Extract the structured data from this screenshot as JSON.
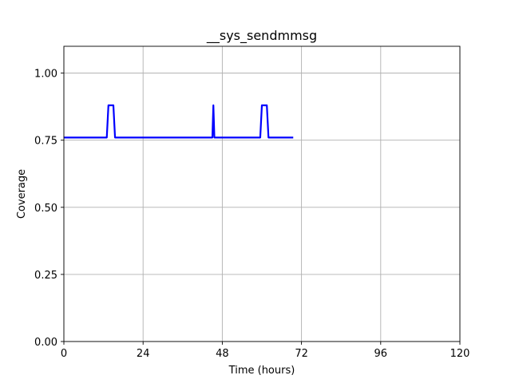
{
  "chart_data": {
    "type": "line",
    "title": "__sys_sendmmsg",
    "xlabel": "Time (hours)",
    "ylabel": "Coverage",
    "xlim": [
      0,
      120
    ],
    "ylim": [
      0,
      1.1
    ],
    "xticks": [
      0,
      24,
      48,
      72,
      96,
      120
    ],
    "xtick_labels": [
      "0",
      "24",
      "48",
      "72",
      "96",
      "120"
    ],
    "yticks": [
      0,
      0.25,
      0.5,
      0.75,
      1.0
    ],
    "ytick_labels": [
      "0.00",
      "0.25",
      "0.50",
      "0.75",
      "1.00"
    ],
    "grid": true,
    "series": [
      {
        "color": "#0000ff",
        "x": [
          0,
          13,
          13.5,
          15,
          15.5,
          45,
          45.3,
          45.6,
          59.5,
          60,
          61.5,
          62,
          69.5
        ],
        "y": [
          0.76,
          0.76,
          0.88,
          0.88,
          0.76,
          0.76,
          0.88,
          0.76,
          0.76,
          0.88,
          0.88,
          0.76,
          0.76
        ]
      }
    ]
  }
}
